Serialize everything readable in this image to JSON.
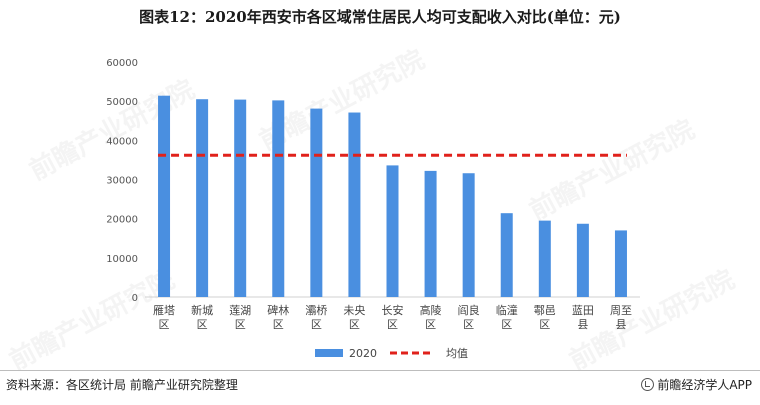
{
  "title": "图表12：2020年西安市各区域常住居民人均可支配收入对比(单位：元)",
  "source": "资料来源：各区统计局 前瞻产业研究院整理",
  "brand": "前瞻经济学人APP",
  "watermark": "前瞻产业研究院",
  "colors": {
    "bar": "#4a8fe0",
    "avg": "#e0211b",
    "axis": "#d0d0d0",
    "tick": "#555555"
  },
  "chart_data": {
    "type": "bar",
    "categories": [
      "雁塔\n区",
      "新城\n区",
      "莲湖\n区",
      "碑林\n区",
      "灞桥\n区",
      "未央\n区",
      "长安\n区",
      "高陵\n区",
      "阎良\n区",
      "临潼\n区",
      "鄠邑\n区",
      "蓝田\n县",
      "周至\n县"
    ],
    "series": [
      {
        "name": "2020",
        "values": [
          51400,
          50500,
          50400,
          50200,
          48100,
          47100,
          33600,
          32200,
          31600,
          21400,
          19500,
          18700,
          17000
        ]
      }
    ],
    "avg": {
      "name": "均值",
      "value": 36200
    },
    "ylim": [
      0,
      60000
    ],
    "yticks": [
      0,
      10000,
      20000,
      30000,
      40000,
      50000,
      60000
    ],
    "legend": "bottom"
  }
}
